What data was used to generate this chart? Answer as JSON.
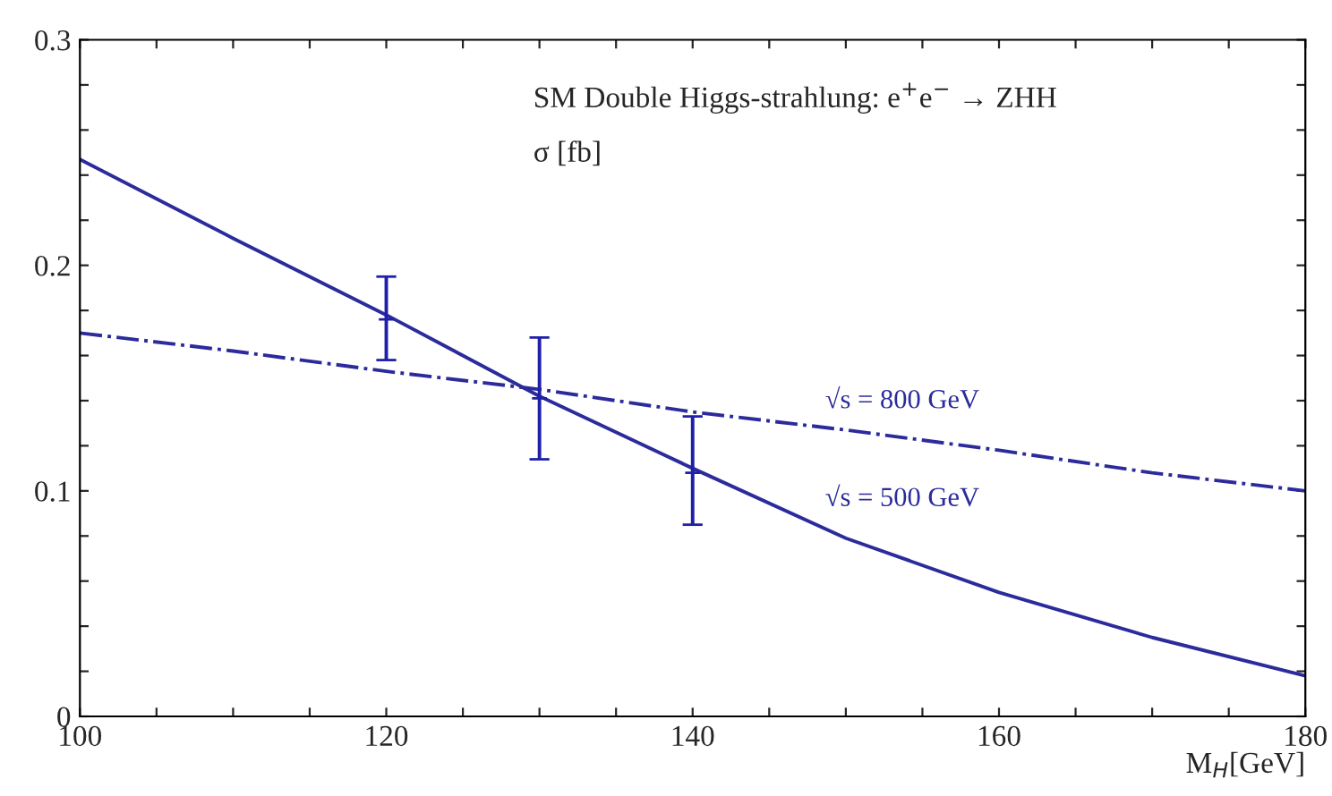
{
  "chart_data": {
    "type": "line",
    "xlabel": "M$_{H}$[GeV]",
    "annotations": [
      "SM Double Higgs-strahlung: e$^{+}$e$^{−}$ → ZHH",
      "σ [fb]"
    ],
    "xlim": [
      100,
      180
    ],
    "xticks": [
      100,
      {
        "value": 105,
        "label": null
      },
      {
        "value": 110,
        "label": null
      },
      {
        "value": 115,
        "label": null
      },
      120,
      {
        "value": 125,
        "label": null
      },
      {
        "value": 130,
        "label": null
      },
      {
        "value": 135,
        "label": null
      },
      140,
      {
        "value": 145,
        "label": null
      },
      {
        "value": 150,
        "label": null
      },
      {
        "value": 155,
        "label": null
      },
      160,
      {
        "value": 165,
        "label": null
      },
      {
        "value": 170,
        "label": null
      },
      {
        "value": 175,
        "label": null
      },
      180
    ],
    "ylim": [
      0,
      0.3
    ],
    "yticks": [
      0,
      {
        "value": 0.02,
        "label": null
      },
      {
        "value": 0.04,
        "label": null
      },
      {
        "value": 0.06,
        "label": null
      },
      {
        "value": 0.08,
        "label": null
      },
      0.1,
      {
        "value": 0.12,
        "label": null
      },
      {
        "value": 0.14,
        "label": null
      },
      {
        "value": 0.16,
        "label": null
      },
      {
        "value": 0.18,
        "label": null
      },
      0.2,
      {
        "value": 0.22,
        "label": null
      },
      {
        "value": 0.24,
        "label": null
      },
      {
        "value": 0.26,
        "label": null
      },
      {
        "value": 0.28,
        "label": null
      },
      0.3
    ],
    "grid": false,
    "legend": false,
    "series": [
      {
        "name": "√s = 800 GeV",
        "line_style": "dashed",
        "color": "#2b2b9c",
        "x": [
          100,
          110,
          120,
          130,
          140,
          150,
          160,
          170,
          180
        ],
        "values": [
          0.17,
          0.162,
          0.153,
          0.145,
          0.135,
          0.127,
          0.118,
          0.108,
          0.1
        ]
      },
      {
        "name": "√s = 500 GeV",
        "line_style": "solid",
        "color": "#2b2b9c",
        "x": [
          100,
          110,
          120,
          130,
          140,
          150,
          160,
          170,
          180
        ],
        "values": [
          0.247,
          0.212,
          0.178,
          0.142,
          0.11,
          0.079,
          0.055,
          0.035,
          0.018
        ]
      },
      {
        "type": "scatter",
        "marker": "cross",
        "color": "#1f1fa8",
        "x": [
          120,
          130,
          140
        ],
        "values": [
          0.176,
          0.141,
          0.108
        ],
        "errors": [
          [
            0.158,
            0.195
          ],
          [
            0.114,
            0.168
          ],
          [
            0.085,
            0.133
          ]
        ]
      }
    ]
  }
}
